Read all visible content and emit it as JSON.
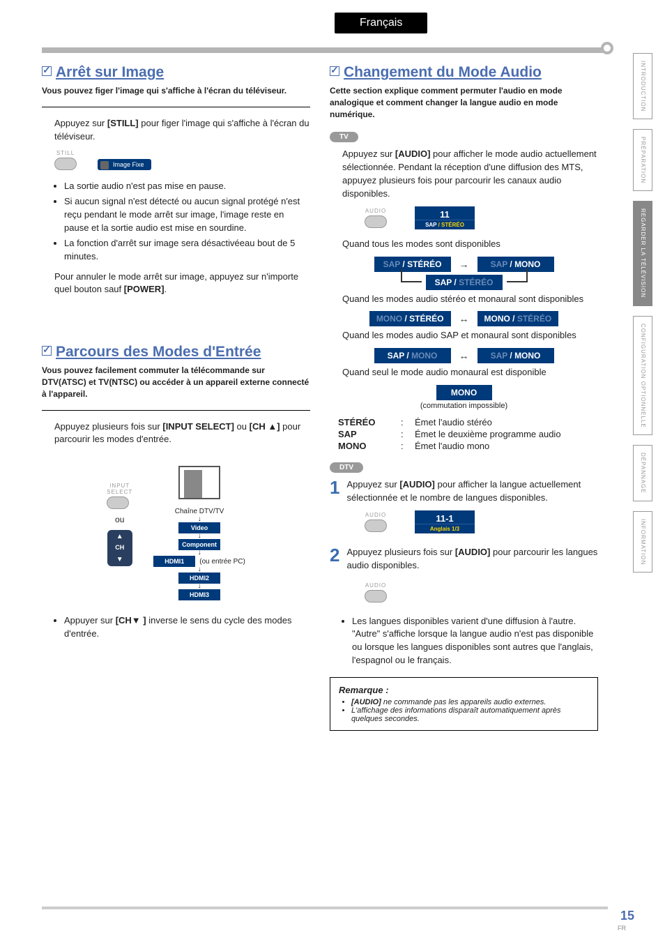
{
  "header": {
    "language": "Français"
  },
  "sideTabs": {
    "items": [
      {
        "label": "INTRODUCTION",
        "active": false
      },
      {
        "label": "PRÉPARATION",
        "active": false
      },
      {
        "label": "REGARDER LA\nTÉLÉVISION",
        "active": true
      },
      {
        "label": "CONFIGURATION\nOPTIONNELLE",
        "active": false
      },
      {
        "label": "DÉPANNAGE",
        "active": false
      },
      {
        "label": "INFORMATION",
        "active": false
      }
    ]
  },
  "footer": {
    "pageNumber": "15",
    "locale": "FR"
  },
  "arret": {
    "title": "Arrêt sur Image",
    "intro": "Vous pouvez figer l'image qui s'affiche à l'écran du téléviseur.",
    "line1_a": "Appuyez sur ",
    "line1_key": "[STILL]",
    "line1_b": " pour figer l'image qui s'affiche à l'écran du téléviseur.",
    "still_key_label": "STILL",
    "badge": "Image Fixe",
    "bullets": [
      "La sortie audio n'est pas mise en pause.",
      "Si aucun signal n'est détecté ou aucun signal protégé n'est reçu pendant le mode arrêt sur image, l'image reste en pause et la sortie audio est mise en sourdine.",
      "La fonction d'arrêt sur image sera désactivéeau bout de 5 minutes."
    ],
    "cancel_a": "Pour annuler le mode arrêt sur image, appuyez sur n'importe quel bouton sauf ",
    "cancel_key": "[POWER]",
    "cancel_b": "."
  },
  "parcours": {
    "title": "Parcours des Modes d'Entrée",
    "intro": "Vous pouvez facilement commuter la télécommande sur DTV(ATSC) et TV(NTSC) ou accéder à un appareil externe connecté à l'appareil.",
    "line1_a": "Appuyez plusieurs fois sur ",
    "line1_key1": "[INPUT SELECT]",
    "line1_mid": " ou ",
    "line1_key2": "[CH ▲]",
    "line1_b": " pour parcourir les modes d'entrée.",
    "input_select_label": "INPUT\nSELECT",
    "ou": "ou",
    "ch_label": "CH",
    "chain": "Chaîne DTV/TV",
    "inputs": [
      "Video",
      "Component",
      "HDMI1",
      "HDMI2",
      "HDMI3"
    ],
    "side_note": "(ou entrée PC)",
    "bullet_a": "Appuyer sur ",
    "bullet_key": "[CH▼ ]",
    "bullet_b": " inverse le sens du cycle des modes d'entrée."
  },
  "changement": {
    "title": "Changement du Mode Audio",
    "intro": "Cette section explique comment permuter l'audio en mode analogique et comment changer la langue audio en mode numérique.",
    "tv_badge": "TV",
    "tv_line_a": "Appuyez sur ",
    "tv_line_key": "[AUDIO]",
    "tv_line_b": " pour afficher le mode audio actuellement sélectionnée. Pendant la réception d'une diffusion des MTS, appuyez plusieurs fois pour parcourir les canaux audio disponibles.",
    "audio_key_label": "AUDIO",
    "channel_num": "11",
    "channel_sub_a": "SAP",
    "channel_sub_b": " / STÉRÉO",
    "when_all": "Quand tous les modes sont disponibles",
    "pill_sap_stereo_a": "SAP",
    "pill_sap_stereo_b": " / STÉRÉO",
    "pill_sap_mono_a": "SAP",
    "pill_sap_mono_b": " / MONO",
    "pill_sap_stereo2_a": "SAP / ",
    "pill_sap_stereo2_b": "STÉRÉO",
    "when_stereo_mono": "Quand les modes audio stéréo et monaural sont disponibles",
    "pill_mono_stereo_a": "MONO",
    "pill_mono_stereo_b": " / STÉRÉO",
    "pill_mono_stereo2_a": "MONO / ",
    "pill_mono_stereo2_b": "STÉRÉO",
    "when_sap_mono": "Quand les modes audio SAP et monaural sont disponibles",
    "pill_sapmono_a": "SAP / ",
    "pill_sapmono_b": "MONO",
    "pill_sapmono2_a": "SAP",
    "pill_sapmono2_b": " / MONO",
    "when_mono_only": "Quand seul le mode audio monaural est disponible",
    "pill_mono": "MONO",
    "mono_caption": "(commutation impossible)",
    "defs": [
      {
        "term": "STÉRÉO",
        "desc": "Émet l'audio stéréo"
      },
      {
        "term": "SAP",
        "desc": "Émet le deuxième programme audio"
      },
      {
        "term": "MONO",
        "desc": "Émet l'audio mono"
      }
    ],
    "dtv_badge": "DTV",
    "step1_num": "1",
    "step1_a": "Appuyez sur ",
    "step1_key": "[AUDIO]",
    "step1_b": " pour afficher la langue actuellement sélectionnée et le nombre de langues disponibles.",
    "ch2_num": "11-1",
    "ch2_sub": "Anglais 1/3",
    "step2_num": "2",
    "step2_a": "Appuyez plusieurs fois sur ",
    "step2_key": "[AUDIO]",
    "step2_b": " pour parcourir les langues audio disponibles.",
    "dtv_bullet": "Les langues disponibles varient d'une diffusion à l'autre. \"Autre\" s'affiche lorsque la langue audio n'est pas disponible ou lorsque les langues disponibles sont autres que l'anglais, l'espagnol ou le français.",
    "note_title": "Remarque :",
    "note_items": [
      "[AUDIO] ne commande pas les appareils audio externes.",
      "L'affichage des informations disparaît automatiquement après quelques secondes."
    ]
  }
}
